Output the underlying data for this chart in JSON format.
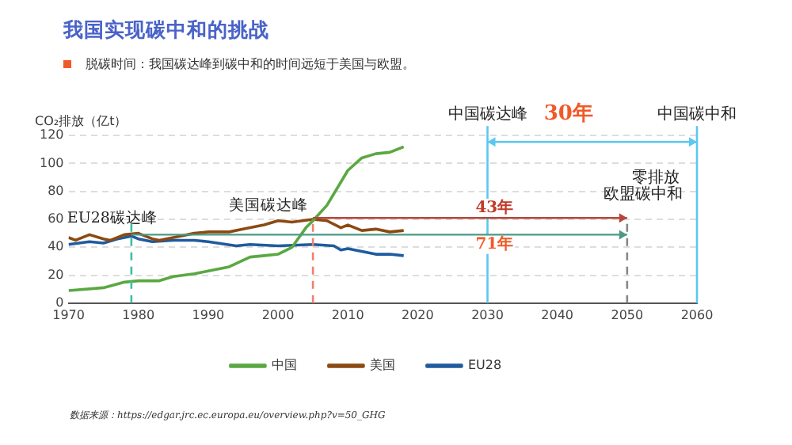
{
  "chart_data": {
    "type": "line",
    "title": "我国实现碳中和的挑战",
    "subtitle": "脱碳时间：我国碳达峰到碳中和的时间远短于美国与欧盟。",
    "ylabel": "CO₂排放（亿t）",
    "xlim": [
      1970,
      2060
    ],
    "xticks": [
      1970,
      1980,
      1990,
      2000,
      2010,
      2020,
      2030,
      2040,
      2050,
      2060
    ],
    "ylim": [
      0,
      120
    ],
    "yticks": [
      0,
      20,
      40,
      60,
      80,
      100,
      120
    ],
    "grid": "y",
    "legend": "bottom",
    "marker": "none",
    "line_style": "solid",
    "series": [
      {
        "name": "中国",
        "color": "#5aa842",
        "x": [
          1970,
          1975,
          1978,
          1980,
          1983,
          1985,
          1988,
          1990,
          1993,
          1996,
          1998,
          2000,
          2002,
          2004,
          2005,
          2007,
          2010,
          2012,
          2014,
          2016,
          2018
        ],
        "values": [
          9,
          11,
          15,
          16,
          16,
          19,
          21,
          23,
          26,
          33,
          34,
          35,
          40,
          54,
          59,
          70,
          95,
          104,
          107,
          108,
          112
        ]
      },
      {
        "name": "美国",
        "color": "#8b4a12",
        "x": [
          1970,
          1971,
          1973,
          1975,
          1976,
          1978,
          1980,
          1982,
          1983,
          1985,
          1988,
          1990,
          1993,
          1995,
          1998,
          2000,
          2002,
          2005,
          2007,
          2009,
          2010,
          2012,
          2014,
          2016,
          2018
        ],
        "values": [
          47,
          45,
          49,
          46,
          45,
          49,
          50,
          46,
          45,
          47,
          50,
          51,
          51,
          53,
          56,
          59,
          58,
          60,
          59,
          54,
          56,
          52,
          53,
          51,
          52
        ]
      },
      {
        "name": "EU28",
        "color": "#1f5b9e",
        "x": [
          1970,
          1973,
          1975,
          1977,
          1979,
          1980,
          1982,
          1985,
          1988,
          1990,
          1994,
          1996,
          2000,
          2005,
          2008,
          2009,
          2010,
          2012,
          2014,
          2016,
          2018
        ],
        "values": [
          42,
          44,
          43,
          46,
          48,
          46,
          44,
          45,
          45,
          44,
          41,
          42,
          41,
          42,
          41,
          38,
          39,
          37,
          35,
          35,
          34
        ]
      }
    ],
    "ref_lines": [
      {
        "axis": "x",
        "value": 1979,
        "label": "EU28碳达峰",
        "color": "#3cc0a0",
        "line_style": "dashed"
      },
      {
        "axis": "x",
        "value": 2005,
        "label": "美国碳达峰",
        "color": "#f08070",
        "line_style": "dashed"
      },
      {
        "axis": "x",
        "value": 2030,
        "label": "中国碳达峰",
        "color": "#5bc8f0",
        "line_style": "solid"
      },
      {
        "axis": "x",
        "value": 2050,
        "label": "欧盟碳中和",
        "color": "#888888",
        "line_style": "dashed"
      },
      {
        "axis": "x",
        "value": 2060,
        "label": "中国碳中和",
        "color": "#5bc8f0",
        "line_style": "solid"
      }
    ],
    "annotations": [
      "30年",
      {
        "text": "43年",
        "x": 2031,
        "y": 68
      },
      {
        "text": "71年",
        "x": 2031,
        "y": 42
      },
      "零排放",
      "数据来源：https://edgar.jrc.ec.europa.eu/overview.php?v=50_GHG"
    ]
  }
}
